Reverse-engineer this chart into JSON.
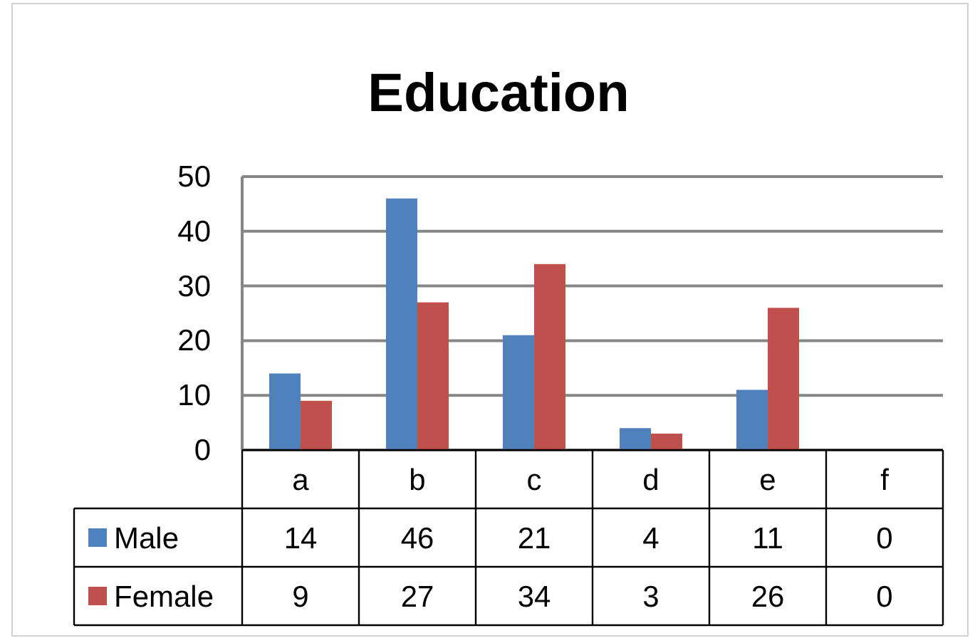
{
  "chart_data": {
    "type": "bar",
    "title": "Education",
    "categories": [
      "a",
      "b",
      "c",
      "d",
      "e",
      "f"
    ],
    "series": [
      {
        "name": "Male",
        "color": "#4f81bd",
        "values": [
          14,
          46,
          21,
          4,
          11,
          0
        ]
      },
      {
        "name": "Female",
        "color": "#c0504d",
        "values": [
          9,
          27,
          34,
          3,
          26,
          0
        ]
      }
    ],
    "ylim": [
      0,
      50
    ],
    "yticks": [
      0,
      10,
      20,
      30,
      40,
      50
    ],
    "grid": "y",
    "legend": "bottom",
    "data_labels": true
  }
}
